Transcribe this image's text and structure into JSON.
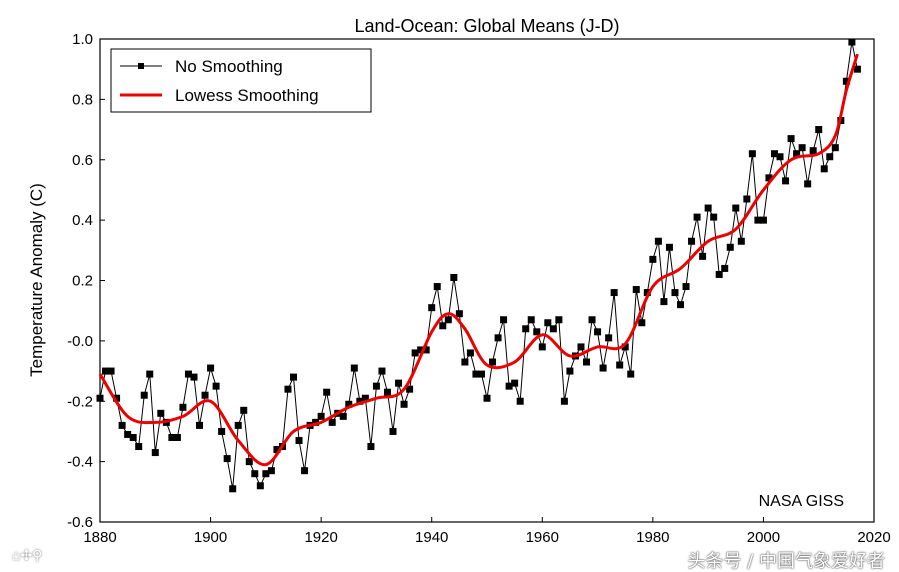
{
  "chart_data": {
    "type": "line",
    "title": "Land-Ocean: Global Means (J-D)",
    "xlabel": "",
    "ylabel": "Temperature Anomaly (C)",
    "xlim": [
      1880,
      2020
    ],
    "ylim": [
      -0.6,
      1.0
    ],
    "x_ticks": [
      "1880",
      "1900",
      "1920",
      "1940",
      "1960",
      "1980",
      "2000",
      "2020"
    ],
    "y_ticks": [
      "-0.6",
      "-0.4",
      "-0.2",
      "-0.0",
      "0.2",
      "0.4",
      "0.6",
      "0.8",
      "1.0"
    ],
    "grid": false,
    "legend_position": "top-left",
    "annotation": "NASA GISS",
    "series": [
      {
        "name": "No Smoothing",
        "color": "#000000",
        "marker": "square",
        "x_start": 1880,
        "values": [
          -0.19,
          -0.1,
          -0.1,
          -0.19,
          -0.28,
          -0.31,
          -0.32,
          -0.35,
          -0.18,
          -0.11,
          -0.37,
          -0.24,
          -0.27,
          -0.32,
          -0.32,
          -0.22,
          -0.11,
          -0.12,
          -0.28,
          -0.18,
          -0.09,
          -0.15,
          -0.3,
          -0.39,
          -0.49,
          -0.28,
          -0.23,
          -0.4,
          -0.44,
          -0.48,
          -0.44,
          -0.43,
          -0.36,
          -0.35,
          -0.16,
          -0.12,
          -0.33,
          -0.43,
          -0.28,
          -0.27,
          -0.25,
          -0.17,
          -0.27,
          -0.24,
          -0.25,
          -0.21,
          -0.09,
          -0.2,
          -0.19,
          -0.35,
          -0.15,
          -0.1,
          -0.17,
          -0.3,
          -0.14,
          -0.21,
          -0.16,
          -0.04,
          -0.03,
          -0.03,
          0.11,
          0.18,
          0.05,
          0.07,
          0.21,
          0.09,
          -0.07,
          -0.04,
          -0.11,
          -0.11,
          -0.19,
          -0.07,
          0.01,
          0.07,
          -0.15,
          -0.14,
          -0.2,
          0.04,
          0.07,
          0.03,
          -0.02,
          0.06,
          0.04,
          0.07,
          -0.2,
          -0.1,
          -0.05,
          -0.02,
          -0.07,
          0.07,
          0.03,
          -0.09,
          0.01,
          0.16,
          -0.08,
          -0.02,
          -0.11,
          0.17,
          0.06,
          0.16,
          0.27,
          0.33,
          0.13,
          0.31,
          0.16,
          0.12,
          0.18,
          0.33,
          0.41,
          0.28,
          0.44,
          0.41,
          0.22,
          0.24,
          0.31,
          0.44,
          0.33,
          0.47,
          0.62,
          0.4,
          0.4,
          0.54,
          0.62,
          0.61,
          0.53,
          0.67,
          0.62,
          0.64,
          0.52,
          0.63,
          0.7,
          0.57,
          0.61,
          0.64,
          0.73,
          0.86,
          0.99,
          0.9
        ]
      },
      {
        "name": "Lowess Smoothing",
        "color": "#ee0000",
        "x": [
          1880,
          1885,
          1890,
          1895,
          1900,
          1905,
          1910,
          1915,
          1920,
          1925,
          1930,
          1935,
          1940,
          1943,
          1946,
          1950,
          1955,
          1960,
          1965,
          1970,
          1975,
          1980,
          1985,
          1990,
          1995,
          2000,
          2005,
          2010,
          2013,
          2015,
          2017
        ],
        "values": [
          -0.11,
          -0.25,
          -0.27,
          -0.25,
          -0.2,
          -0.33,
          -0.41,
          -0.3,
          -0.27,
          -0.22,
          -0.19,
          -0.16,
          0.03,
          0.09,
          0.04,
          -0.08,
          -0.07,
          0.02,
          -0.05,
          -0.02,
          -0.01,
          0.18,
          0.24,
          0.33,
          0.37,
          0.5,
          0.6,
          0.62,
          0.68,
          0.83,
          0.95
        ]
      }
    ]
  },
  "watermark": {
    "text": "头条号 / 中国气象爱好者",
    "icons": "⌂✣⚲"
  }
}
